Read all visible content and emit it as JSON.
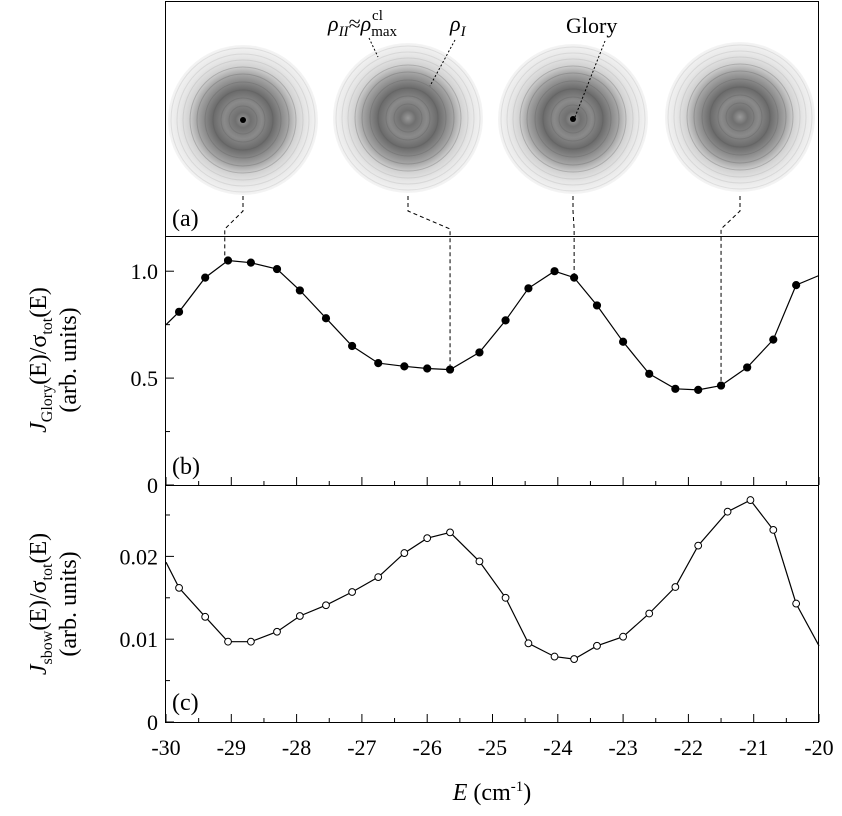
{
  "figure": {
    "panel_labels": [
      "(a)",
      "(b)",
      "(c)"
    ],
    "image_annotations": {
      "rho_II": "ρ_II≈ρ_max^cl",
      "rho_I": "ρ_I",
      "glory": "Glory"
    }
  },
  "chart_data": [
    {
      "panel": "(a)",
      "type": "image_series",
      "images_at_E": [
        -29.1,
        -25.65,
        -23.75,
        -21.5
      ],
      "glory_spot_visible": [
        true,
        false,
        true,
        false
      ]
    },
    {
      "panel": "(b)",
      "type": "line",
      "marker": "filled-circle",
      "ylabel": "J_Glory(E)/σ_tot(E) (arb. units)",
      "ylabel_parts": {
        "sym": "J",
        "sub1": "Glory",
        "mid": "(E)/σ",
        "sub2": "tot",
        "end": "(E)",
        "units": "(arb. units)"
      },
      "ylim": [
        0,
        1.16
      ],
      "yticks": [
        0,
        0.5,
        1.0
      ],
      "ytick_labels": [
        "0",
        "0.5",
        "1.0"
      ],
      "grid": false,
      "line_start": {
        "x": -30.0,
        "y": 0.75
      },
      "line_end": {
        "x": -20.0,
        "y": 0.98
      },
      "x": [
        -29.8,
        -29.4,
        -29.05,
        -28.7,
        -28.3,
        -27.95,
        -27.55,
        -27.15,
        -26.75,
        -26.35,
        -26.0,
        -25.65,
        -25.2,
        -24.8,
        -24.45,
        -24.05,
        -23.75,
        -23.4,
        -23.0,
        -22.6,
        -22.2,
        -21.85,
        -21.5,
        -21.1,
        -20.7,
        -20.35
      ],
      "y": [
        0.81,
        0.97,
        1.05,
        1.04,
        1.01,
        0.91,
        0.78,
        0.65,
        0.57,
        0.555,
        0.545,
        0.54,
        0.62,
        0.77,
        0.92,
        1.0,
        0.97,
        0.84,
        0.67,
        0.52,
        0.45,
        0.445,
        0.465,
        0.55,
        0.68,
        0.935
      ]
    },
    {
      "panel": "(c)",
      "type": "line",
      "marker": "open-circle",
      "xlabel": "E (cm-1)",
      "xlabel_parts": {
        "sym": "E",
        "unit": "(cm",
        "exp": "-1",
        "close": ")"
      },
      "ylabel": "J_sbow(E)/σ_tot(E) (arb. units)",
      "ylabel_parts": {
        "sym": "J",
        "sub1": "sbow",
        "mid": "(E)/σ",
        "sub2": "tot",
        "end": "(E)",
        "units": "(arb. units)"
      },
      "xlim": [
        -30,
        -20
      ],
      "ylim": [
        0,
        0.0285
      ],
      "xticks": [
        -30,
        -29,
        -28,
        -27,
        -26,
        -25,
        -24,
        -23,
        -22,
        -21,
        -20
      ],
      "xtick_labels": [
        "-30",
        "-29",
        "-28",
        "-27",
        "-26",
        "-25",
        "-24",
        "-23",
        "-22",
        "-21",
        "-20"
      ],
      "yticks": [
        0,
        0.01,
        0.02
      ],
      "ytick_labels": [
        "0",
        "0.01",
        "0.02"
      ],
      "grid": false,
      "line_start": {
        "x": -30.0,
        "y": 0.0193
      },
      "line_end": {
        "x": -20.0,
        "y": 0.0092
      },
      "x": [
        -29.8,
        -29.4,
        -29.05,
        -28.7,
        -28.3,
        -27.95,
        -27.55,
        -27.15,
        -26.75,
        -26.35,
        -26.0,
        -25.65,
        -25.2,
        -24.8,
        -24.45,
        -24.05,
        -23.75,
        -23.4,
        -23.0,
        -22.6,
        -22.2,
        -21.85,
        -21.4,
        -21.05,
        -20.7,
        -20.35
      ],
      "y": [
        0.0162,
        0.0127,
        0.0097,
        0.0097,
        0.0109,
        0.0128,
        0.0141,
        0.0157,
        0.0175,
        0.0204,
        0.0222,
        0.0229,
        0.0194,
        0.015,
        0.0095,
        0.0079,
        0.0076,
        0.0092,
        0.0103,
        0.0131,
        0.0163,
        0.0213,
        0.0254,
        0.0268,
        0.0232,
        0.0143
      ]
    }
  ]
}
